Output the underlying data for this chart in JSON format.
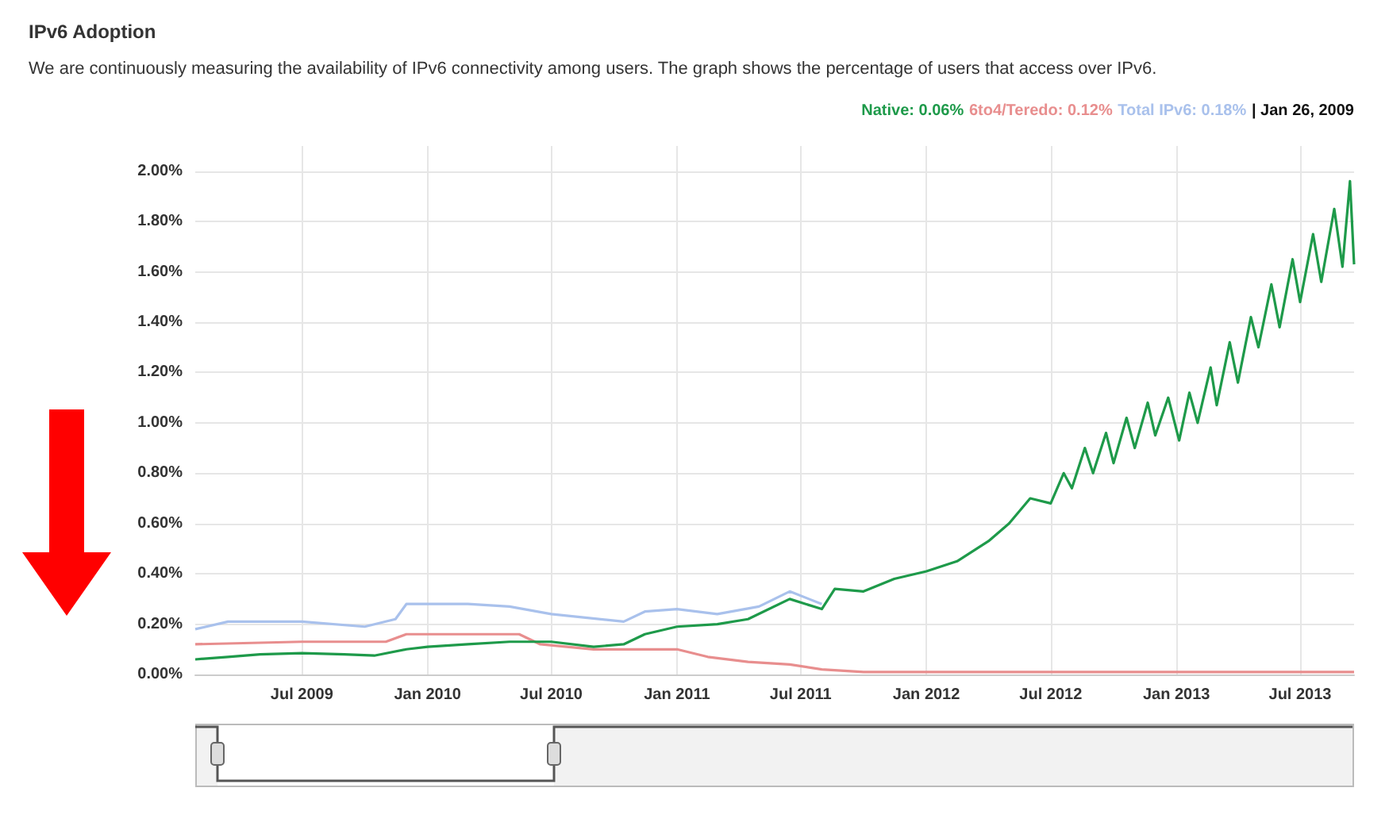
{
  "chart_data": {
    "type": "line",
    "title": "IPv6 Adoption",
    "subtitle": "We are continuously measuring the availability of IPv6 connectivity among users. The graph shows the percentage of users that access over IPv6.",
    "annotations": [
      "Native: 0.06%",
      "6to4/Teredo: 0.12%",
      "Total IPv6: 0.18%",
      "| Jan 26, 2009"
    ],
    "xlim": [
      "2009-01-26",
      "2013-09-18"
    ],
    "xticks": [
      {
        "value": "2009-07-01",
        "label": "Jul 2009"
      },
      {
        "value": "2010-01-01",
        "label": "Jan 2010"
      },
      {
        "value": "2010-07-01",
        "label": "Jul 2010"
      },
      {
        "value": "2011-01-01",
        "label": "Jan 2011"
      },
      {
        "value": "2011-07-01",
        "label": "Jul 2011"
      },
      {
        "value": "2012-01-01",
        "label": "Jan 2012"
      },
      {
        "value": "2012-07-01",
        "label": "Jul 2012"
      },
      {
        "value": "2013-01-01",
        "label": "Jan 2013"
      },
      {
        "value": "2013-07-01",
        "label": "Jul 2013"
      }
    ],
    "ylim": [
      0,
      2.1
    ],
    "yticks": [
      {
        "value": 0,
        "label": "0.00%"
      },
      {
        "value": 0.2,
        "label": "0.20%"
      },
      {
        "value": 0.4,
        "label": "0.40%"
      },
      {
        "value": 0.6,
        "label": "0.60%"
      },
      {
        "value": 0.8,
        "label": "0.80%"
      },
      {
        "value": 1.0,
        "label": "1.00%"
      },
      {
        "value": 1.2,
        "label": "1.20%"
      },
      {
        "value": 1.4,
        "label": "1.40%"
      },
      {
        "value": 1.6,
        "label": "1.60%"
      },
      {
        "value": 1.8,
        "label": "1.80%"
      },
      {
        "value": 2.0,
        "label": "2.00%"
      }
    ],
    "grid": true,
    "marker": "none",
    "series": [
      {
        "color": "#a9c1ec",
        "x": [
          "2009-01-26",
          "2009-03-15",
          "2009-07-01",
          "2009-10-01",
          "2009-11-15",
          "2009-12-01",
          "2010-03-01",
          "2010-05-01",
          "2010-07-01",
          "2010-10-15",
          "2010-11-15",
          "2011-01-01",
          "2011-03-01",
          "2011-05-01",
          "2011-06-15",
          "2011-08-01"
        ],
        "values": [
          0.18,
          0.21,
          0.21,
          0.19,
          0.22,
          0.28,
          0.28,
          0.27,
          0.24,
          0.21,
          0.25,
          0.26,
          0.24,
          0.27,
          0.33,
          0.28
        ]
      },
      {
        "color": "#e88e8e",
        "x": [
          "2009-01-26",
          "2009-07-01",
          "2009-11-01",
          "2009-12-01",
          "2010-05-15",
          "2010-06-15",
          "2010-09-01",
          "2011-01-01",
          "2011-02-15",
          "2011-04-15",
          "2011-06-15",
          "2011-08-01",
          "2011-10-01",
          "2012-07-01",
          "2013-09-18"
        ],
        "values": [
          0.12,
          0.13,
          0.13,
          0.16,
          0.16,
          0.12,
          0.1,
          0.1,
          0.07,
          0.05,
          0.04,
          0.02,
          0.01,
          0.01,
          0.01
        ]
      },
      {
        "color": "#1e9a4a",
        "x": [
          "2009-01-26",
          "2009-03-15",
          "2009-05-01",
          "2009-07-01",
          "2009-09-01",
          "2009-10-15",
          "2009-12-01",
          "2010-01-01",
          "2010-03-01",
          "2010-05-01",
          "2010-07-01",
          "2010-09-01",
          "2010-10-15",
          "2010-11-15",
          "2011-01-01",
          "2011-03-01",
          "2011-04-15",
          "2011-06-15",
          "2011-08-01",
          "2011-08-20",
          "2011-10-01",
          "2011-11-15",
          "2012-01-01",
          "2012-02-15",
          "2012-04-01",
          "2012-05-01",
          "2012-06-01",
          "2012-07-01",
          "2012-07-20",
          "2012-08-01",
          "2012-08-20",
          "2012-09-01",
          "2012-09-20",
          "2012-10-01",
          "2012-10-20",
          "2012-11-01",
          "2012-11-20",
          "2012-12-01",
          "2012-12-20",
          "2013-01-05",
          "2013-01-20",
          "2013-02-01",
          "2013-02-20",
          "2013-03-01",
          "2013-03-20",
          "2013-04-01",
          "2013-04-20",
          "2013-05-01",
          "2013-05-20",
          "2013-06-01",
          "2013-06-20",
          "2013-07-01",
          "2013-07-20",
          "2013-08-01",
          "2013-08-20",
          "2013-09-01",
          "2013-09-12",
          "2013-09-18"
        ],
        "values": [
          0.06,
          0.07,
          0.08,
          0.085,
          0.08,
          0.075,
          0.1,
          0.11,
          0.12,
          0.13,
          0.13,
          0.11,
          0.12,
          0.16,
          0.19,
          0.2,
          0.22,
          0.3,
          0.26,
          0.34,
          0.33,
          0.38,
          0.41,
          0.45,
          0.53,
          0.6,
          0.7,
          0.68,
          0.8,
          0.74,
          0.9,
          0.8,
          0.96,
          0.84,
          1.02,
          0.9,
          1.08,
          0.95,
          1.1,
          0.93,
          1.12,
          1.0,
          1.22,
          1.07,
          1.32,
          1.16,
          1.42,
          1.3,
          1.55,
          1.38,
          1.65,
          1.48,
          1.75,
          1.56,
          1.85,
          1.62,
          1.96,
          1.63
        ]
      }
    ]
  }
}
